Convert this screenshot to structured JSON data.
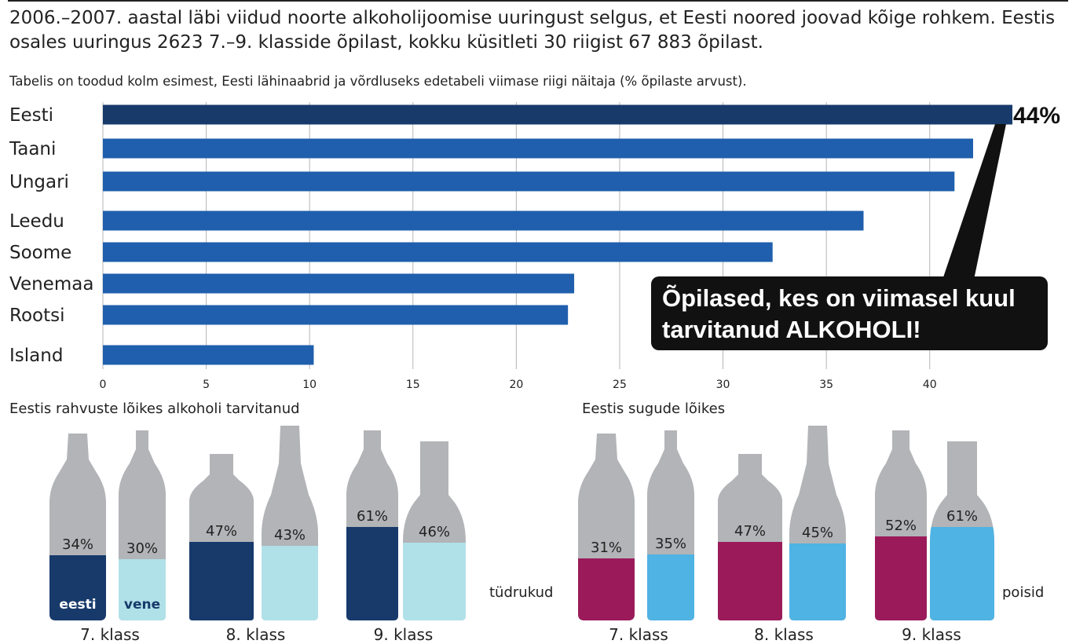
{
  "intro": "2006.–2007. aastal läbi viidud noorte alkoholijoomise uuringust selgus, et Eesti noored joovad kõige rohkem. Eestis osales uuringus 2623  7.–9. klasside õpilast, kokku küsitleti 30 riigist 67 883 õpilast.",
  "chart_data": [
    {
      "type": "bar",
      "orientation": "horizontal",
      "title": "Tabelis on toodud kolm esimest, Eesti lähinaabrid ja võrdluseks edetabeli viimase riigi näitaja (% õpilaste arvust).",
      "categories": [
        "Eesti",
        "Taani",
        "Ungari",
        "Leedu",
        "Soome",
        "Venemaa",
        "Rootsi",
        "Island"
      ],
      "values": [
        44,
        42.1,
        41.2,
        36.8,
        32.4,
        22.8,
        22.5,
        10.2
      ],
      "xlim": [
        0,
        44
      ],
      "xticks": [
        "0",
        "5",
        "10",
        "15",
        "20",
        "25",
        "30",
        "35",
        "40"
      ],
      "grid": true,
      "highlight_label": "44%",
      "callout": "Õpilased, kes on viimasel kuul tarvitanud ALKOHOLI!",
      "colors": {
        "highlight": "#173a6b",
        "bar": "#1f5fad",
        "grid": "#b5b5b5"
      }
    },
    {
      "type": "bar",
      "title": "Eestis rahvuste lõikes alkoholi tarvitanud",
      "categories": [
        "7. klass",
        "8. klass",
        "9. klass"
      ],
      "series": [
        {
          "name": "eesti",
          "values": [
            34,
            47,
            61
          ],
          "labels": [
            "34%",
            "47%",
            "61%"
          ],
          "color": "#173a6b"
        },
        {
          "name": "vene",
          "values": [
            30,
            43,
            46
          ],
          "labels": [
            "30%",
            "43%",
            "46%"
          ],
          "color": "#b1e1e8"
        }
      ]
    },
    {
      "type": "bar",
      "title": "Eestis sugude lõikes",
      "categories": [
        "7. klass",
        "8. klass",
        "9. klass"
      ],
      "series": [
        {
          "name": "tüdrukud",
          "values": [
            31,
            47,
            52
          ],
          "labels": [
            "31%",
            "47%",
            "52%"
          ],
          "color": "#9b1b5a"
        },
        {
          "name": "poisid",
          "values": [
            35,
            45,
            61
          ],
          "labels": [
            "35%",
            "45%",
            "61%"
          ],
          "color": "#4fb3e3"
        }
      ]
    }
  ],
  "colors": {
    "bottle": "#b2b4b7",
    "ink": "#222222"
  }
}
